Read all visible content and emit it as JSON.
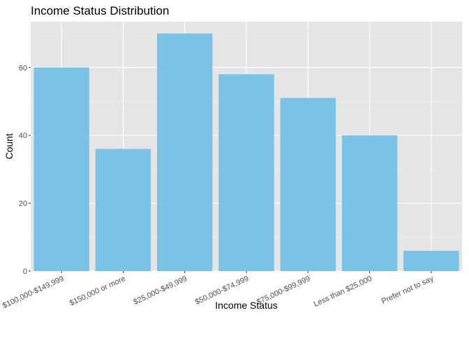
{
  "chart_data": {
    "type": "bar",
    "title": "Income Status Distribution",
    "xlabel": "Income Status",
    "ylabel": "Count",
    "categories": [
      "$100,000-$149,999",
      "$150,000 or more",
      "$25,000-$49,999",
      "$50,000-$74,999",
      "$75,000-$99,999",
      "Less than $25,000",
      "Prefer not to say"
    ],
    "values": [
      60,
      36,
      70,
      58,
      51,
      40,
      6
    ],
    "ylim": [
      0,
      73.5
    ],
    "yticks": [
      0,
      20,
      40,
      60
    ],
    "grid": true,
    "legend": "none",
    "colors": {
      "bar": "#7BC3E6",
      "panel": "#E5E5E5",
      "grid_major": "#FFFFFF",
      "grid_minor": "#F2F2F2"
    }
  }
}
